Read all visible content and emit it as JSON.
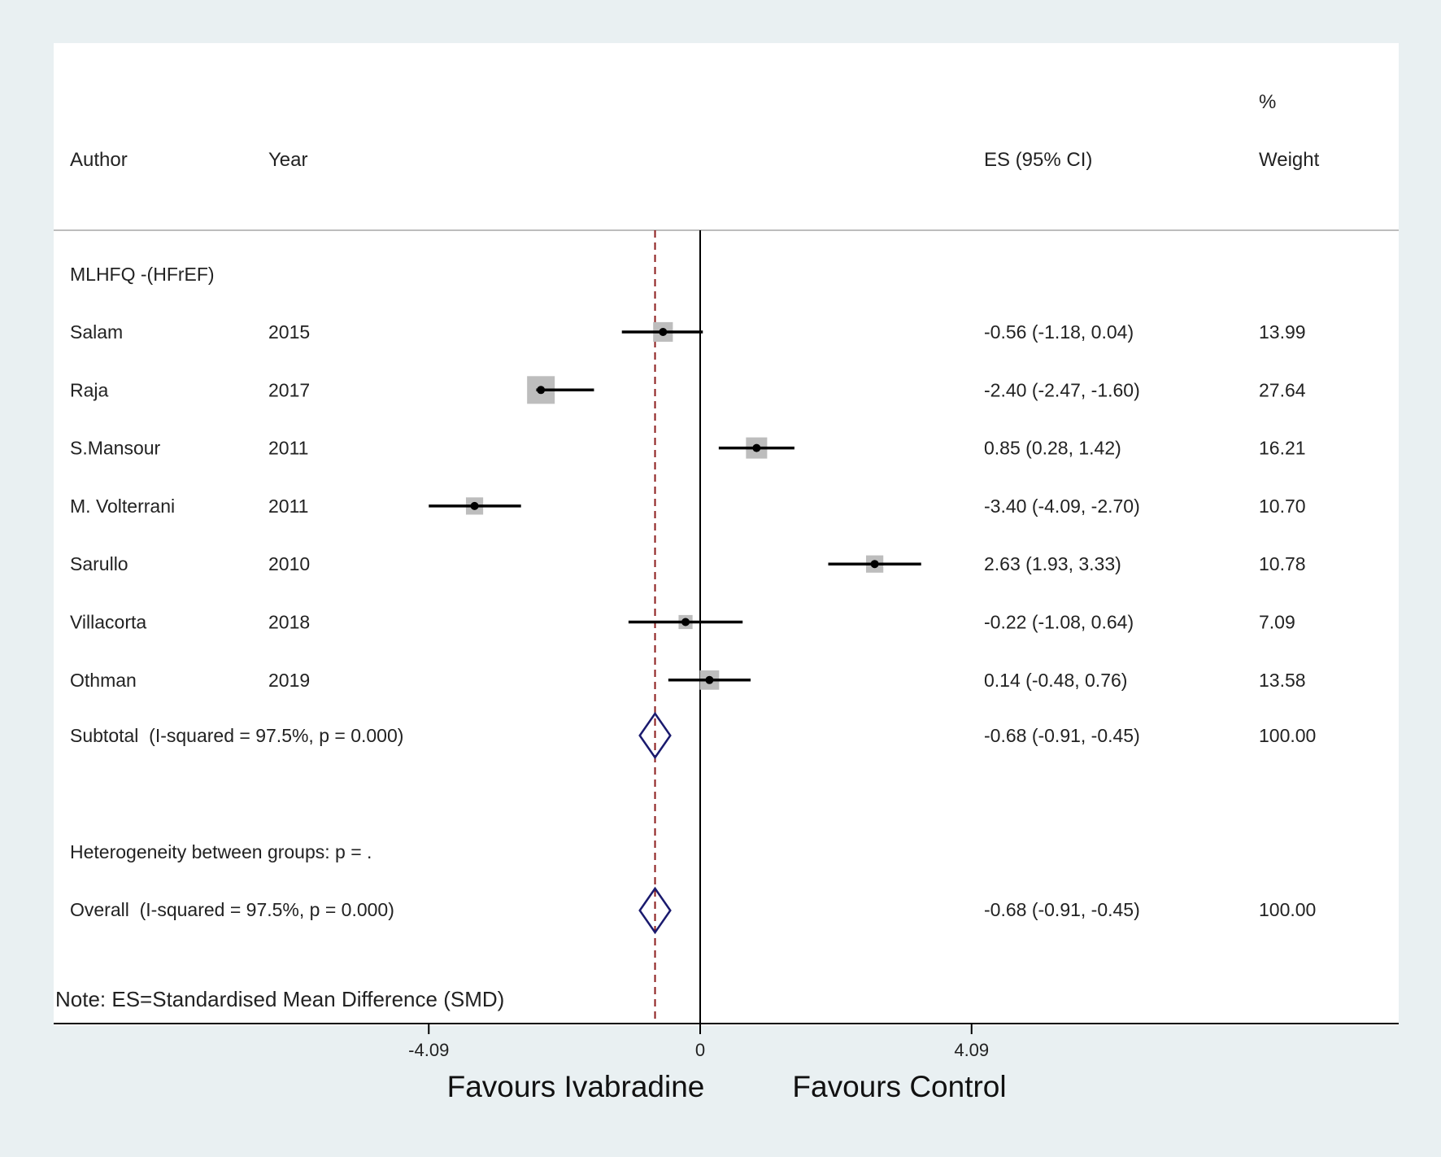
{
  "chart_data": {
    "type": "forest",
    "headers": {
      "author": "Author",
      "year": "Year",
      "es": "ES (95% CI)",
      "weight_line1": "%",
      "weight_line2": "Weight"
    },
    "group_label": "MLHFQ -(HFrEF)",
    "studies": [
      {
        "author": "Salam",
        "year": "2015",
        "es": -0.56,
        "lower": -1.18,
        "upper": 0.04,
        "es_text": "-0.56 (-1.18, 0.04)",
        "weight": 13.99,
        "weight_text": "13.99"
      },
      {
        "author": "Raja",
        "year": "2017",
        "es": -2.4,
        "lower": -2.47,
        "upper": -1.6,
        "es_text": "-2.40 (-2.47, -1.60)",
        "weight": 27.64,
        "weight_text": "27.64"
      },
      {
        "author": "S.Mansour",
        "year": "2011",
        "es": 0.85,
        "lower": 0.28,
        "upper": 1.42,
        "es_text": "0.85 (0.28, 1.42)",
        "weight": 16.21,
        "weight_text": "16.21"
      },
      {
        "author": "M. Volterrani",
        "year": "2011",
        "es": -3.4,
        "lower": -4.09,
        "upper": -2.7,
        "es_text": "-3.40 (-4.09, -2.70)",
        "weight": 10.7,
        "weight_text": "10.70"
      },
      {
        "author": "Sarullo",
        "year": "2010",
        "es": 2.63,
        "lower": 1.93,
        "upper": 3.33,
        "es_text": "2.63 (1.93, 3.33)",
        "weight": 10.78,
        "weight_text": "10.78"
      },
      {
        "author": "Villacorta",
        "year": "2018",
        "es": -0.22,
        "lower": -1.08,
        "upper": 0.64,
        "es_text": "-0.22 (-1.08, 0.64)",
        "weight": 7.09,
        "weight_text": "7.09"
      },
      {
        "author": "Othman",
        "year": "2019",
        "es": 0.14,
        "lower": -0.48,
        "upper": 0.76,
        "es_text": "0.14 (-0.48, 0.76)",
        "weight": 13.58,
        "weight_text": "13.58"
      }
    ],
    "subtotal": {
      "label": "Subtotal  (I-squared = 97.5%, p = 0.000)",
      "es": -0.68,
      "lower": -0.91,
      "upper": -0.45,
      "es_text": "-0.68 (-0.91, -0.45)",
      "weight_text": "100.00"
    },
    "heterogeneity": "Heterogeneity between groups: p = .",
    "overall": {
      "label": "Overall  (I-squared = 97.5%, p = 0.000)",
      "es": -0.68,
      "lower": -0.91,
      "upper": -0.45,
      "es_text": "-0.68 (-0.91, -0.45)",
      "weight_text": "100.00"
    },
    "note": "Note: ES=Standardised Mean Difference (SMD)",
    "x_ticks": [
      {
        "value": -4.09,
        "label": "-4.09"
      },
      {
        "value": 0,
        "label": "0"
      },
      {
        "value": 4.09,
        "label": "4.09"
      }
    ],
    "xlim": [
      -4.09,
      4.09
    ],
    "reference_line": 0,
    "pooled_line": -0.68,
    "favours_left": "Favours Ivabradine",
    "favours_right": "Favours Control",
    "colors": {
      "background": "#e9f0f2",
      "panel": "#ffffff",
      "weight_box": "#bdbdbd",
      "line": "#000000",
      "diamond": "#1a1a6e",
      "pooled_line": "#8b1a1a"
    }
  }
}
